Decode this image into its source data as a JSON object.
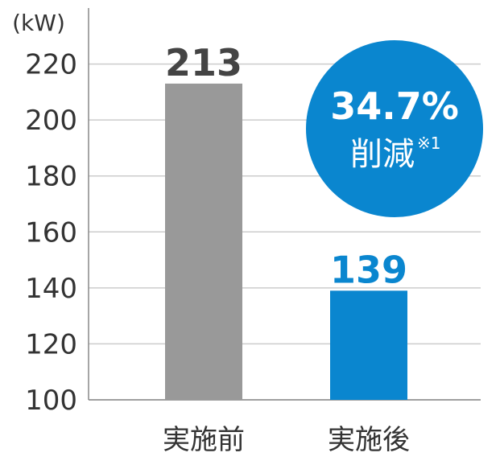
{
  "chart_data": {
    "type": "bar",
    "unit_label": "(kW)",
    "categories": [
      "実施前",
      "実施後"
    ],
    "values": [
      213,
      139
    ],
    "colors": [
      "#999999",
      "#0a86cf"
    ],
    "value_label_colors": [
      "#444444",
      "#0a86cf"
    ],
    "ylim": [
      100,
      240
    ],
    "yticks": [
      100,
      120,
      140,
      160,
      180,
      200,
      220
    ],
    "grid": true,
    "annotation": {
      "value": "34.7%",
      "text": "削減",
      "note": "※1",
      "color": "#0a86cf"
    }
  }
}
